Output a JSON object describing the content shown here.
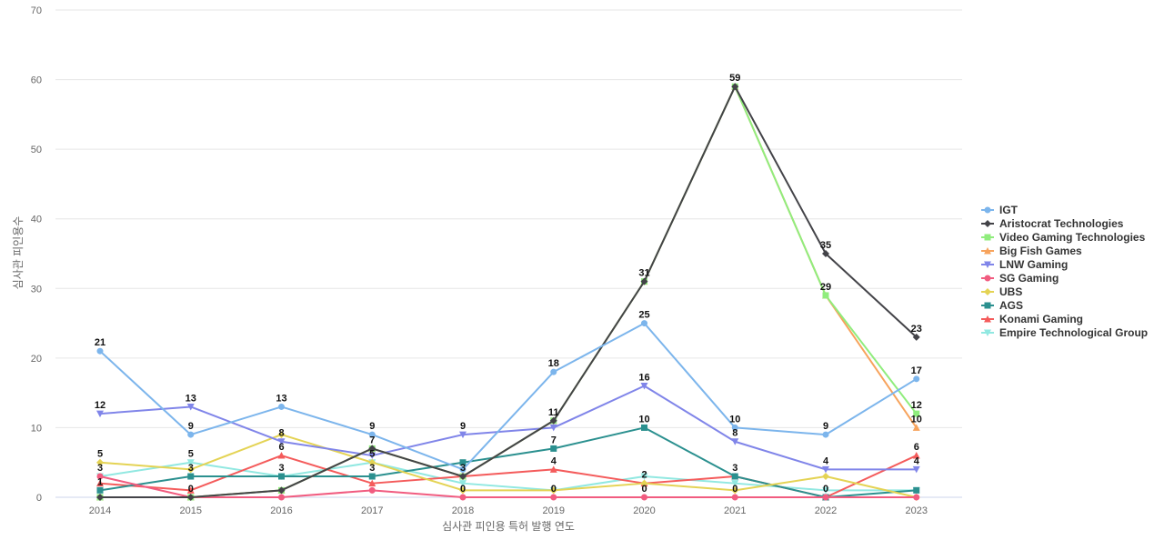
{
  "chart_data": {
    "type": "line",
    "xlabel": "심사관 피인용 특허 발행 연도",
    "ylabel": "심사관 피인용수",
    "ylim": [
      0,
      70
    ],
    "yticks": [
      0,
      10,
      20,
      30,
      40,
      50,
      60,
      70
    ],
    "grid": true,
    "legend_position": "right",
    "categories": [
      "2014",
      "2015",
      "2016",
      "2017",
      "2018",
      "2019",
      "2020",
      "2021",
      "2022",
      "2023"
    ],
    "series": [
      {
        "name": "IGT",
        "color": "#7cb5ec",
        "marker": "circle",
        "values": [
          21,
          9,
          13,
          9,
          4,
          18,
          25,
          10,
          9,
          17
        ],
        "labels": [
          true,
          true,
          true,
          true,
          false,
          true,
          true,
          true,
          true,
          true
        ]
      },
      {
        "name": "Aristocrat Technologies",
        "color": "#434348",
        "marker": "diamond",
        "values": [
          0,
          0,
          1,
          7,
          3,
          11,
          31,
          59,
          35,
          23
        ],
        "labels": [
          false,
          false,
          false,
          true,
          false,
          true,
          true,
          true,
          true,
          true
        ]
      },
      {
        "name": "Video Gaming Technologies",
        "color": "#90ed7d",
        "marker": "square",
        "values": [
          0,
          0,
          1,
          7,
          3,
          11,
          31,
          59,
          29,
          12
        ],
        "labels": [
          false,
          false,
          false,
          false,
          false,
          false,
          false,
          false,
          false,
          true
        ]
      },
      {
        "name": "Big Fish Games",
        "color": "#f7a35c",
        "marker": "triangle",
        "values": [
          0,
          0,
          1,
          7,
          3,
          11,
          31,
          59,
          29,
          10
        ],
        "labels": [
          false,
          false,
          false,
          false,
          false,
          false,
          false,
          false,
          true,
          true
        ]
      },
      {
        "name": "LNW Gaming",
        "color": "#8085e9",
        "marker": "triangle-down",
        "values": [
          12,
          13,
          8,
          6,
          9,
          10,
          16,
          8,
          4,
          4
        ],
        "labels": [
          true,
          true,
          true,
          false,
          true,
          false,
          true,
          true,
          true,
          true
        ]
      },
      {
        "name": "SG Gaming",
        "color": "#f15c80",
        "marker": "circle",
        "values": [
          3,
          0,
          0,
          1,
          0,
          0,
          0,
          0,
          0,
          0
        ],
        "labels": [
          false,
          true,
          false,
          false,
          true,
          true,
          true,
          true,
          true,
          false
        ]
      },
      {
        "name": "UBS",
        "color": "#e4d354",
        "marker": "diamond",
        "values": [
          5,
          4,
          9,
          5,
          1,
          1,
          2,
          1,
          3,
          0
        ],
        "labels": [
          true,
          false,
          false,
          true,
          false,
          false,
          false,
          false,
          false,
          false
        ]
      },
      {
        "name": "AGS",
        "color": "#2b908f",
        "marker": "square",
        "values": [
          1,
          3,
          3,
          3,
          5,
          7,
          10,
          3,
          0,
          1
        ],
        "labels": [
          true,
          true,
          false,
          true,
          false,
          true,
          true,
          true,
          false,
          false
        ]
      },
      {
        "name": "Konami Gaming",
        "color": "#f45b5b",
        "marker": "triangle",
        "values": [
          2,
          1,
          6,
          2,
          3,
          4,
          2,
          3,
          0,
          6
        ],
        "labels": [
          false,
          false,
          true,
          false,
          true,
          true,
          true,
          false,
          false,
          true
        ]
      },
      {
        "name": "Empire Technological Group",
        "color": "#91e8e1",
        "marker": "triangle-down",
        "values": [
          3,
          5,
          3,
          5,
          2,
          1,
          3,
          2,
          1,
          1
        ],
        "labels": [
          true,
          true,
          true,
          false,
          false,
          false,
          false,
          false,
          false,
          false
        ]
      }
    ]
  }
}
